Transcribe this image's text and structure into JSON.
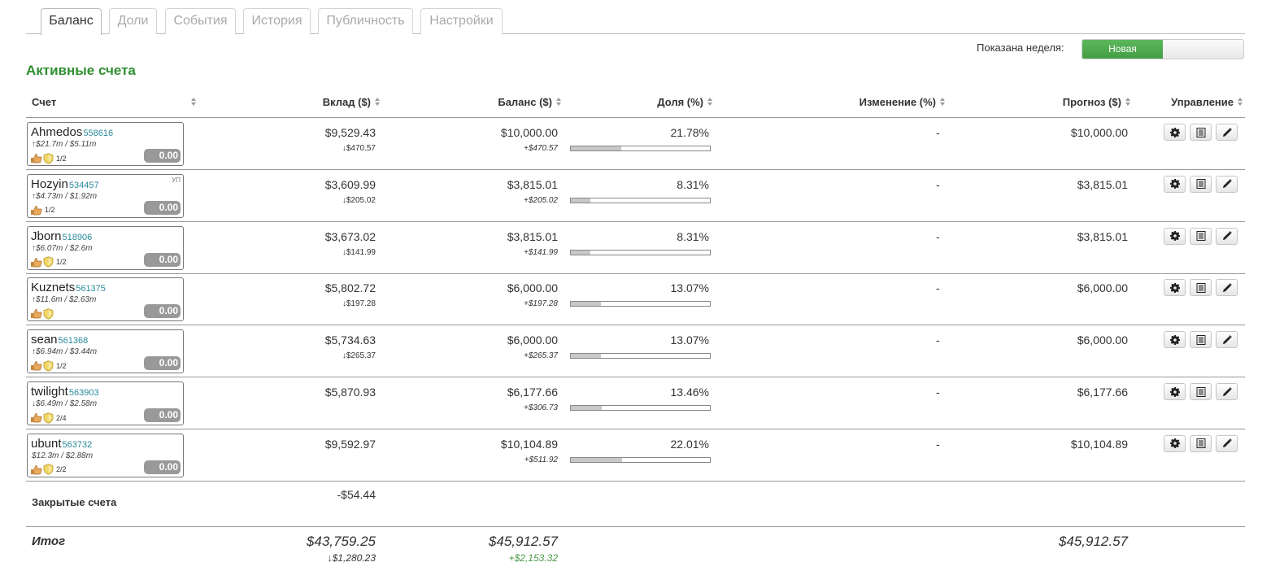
{
  "tabs": [
    {
      "label": "Баланс",
      "active": true
    },
    {
      "label": "Доли",
      "active": false
    },
    {
      "label": "События",
      "active": false
    },
    {
      "label": "История",
      "active": false
    },
    {
      "label": "Публичность",
      "active": false
    },
    {
      "label": "Настройки",
      "active": false
    }
  ],
  "week": {
    "label": "Показана неделя:",
    "selected": "Новая"
  },
  "section_title": "Активные счета",
  "columns": {
    "account": "Счет",
    "deposit": "Вклад ($)",
    "balance": "Баланс ($)",
    "share": "Доля (%)",
    "change": "Изменение (%)",
    "forecast": "Прогноз ($)",
    "manage": "Управление"
  },
  "rows": [
    {
      "name": "Ahmedos",
      "id": "558616",
      "stats": "↑$21.7m / $5.11m",
      "frac": "1/2",
      "shield": true,
      "tag": "",
      "badge": "0.00",
      "deposit": "$9,529.43",
      "deposit_sub": "↓$470.57",
      "balance": "$10,000.00",
      "balance_sub": "+$470.57",
      "share": "21.78%",
      "share_value": 21.78,
      "change": "-",
      "forecast": "$10,000.00"
    },
    {
      "name": "Hozyin",
      "id": "534457",
      "stats": "↑$4.73m / $1.92m",
      "frac": "1/2",
      "shield": false,
      "tag": "УП",
      "badge": "0.00",
      "deposit": "$3,609.99",
      "deposit_sub": "↓$205.02",
      "balance": "$3,815.01",
      "balance_sub": "+$205.02",
      "share": "8.31%",
      "share_value": 8.31,
      "change": "-",
      "forecast": "$3,815.01"
    },
    {
      "name": "Jborn",
      "id": "518906",
      "stats": "↑$6.07m / $2.6m",
      "frac": "1/2",
      "shield": true,
      "tag": "",
      "badge": "0.00",
      "deposit": "$3,673.02",
      "deposit_sub": "↓$141.99",
      "balance": "$3,815.01",
      "balance_sub": "+$141.99",
      "share": "8.31%",
      "share_value": 8.31,
      "change": "-",
      "forecast": "$3,815.01"
    },
    {
      "name": "Kuznets",
      "id": "561375",
      "stats": "↑$11.6m / $2.63m",
      "frac": "",
      "shield": true,
      "tag": "",
      "badge": "0.00",
      "deposit": "$5,802.72",
      "deposit_sub": "↓$197.28",
      "balance": "$6,000.00",
      "balance_sub": "+$197.28",
      "share": "13.07%",
      "share_value": 13.07,
      "change": "-",
      "forecast": "$6,000.00"
    },
    {
      "name": "sean",
      "id": "561368",
      "stats": "↑$6.94m / $3.44m",
      "frac": "1/2",
      "shield": true,
      "tag": "",
      "badge": "0.00",
      "deposit": "$5,734.63",
      "deposit_sub": "↓$265.37",
      "balance": "$6,000.00",
      "balance_sub": "+$265.37",
      "share": "13.07%",
      "share_value": 13.07,
      "change": "-",
      "forecast": "$6,000.00"
    },
    {
      "name": "twilight",
      "id": "563903",
      "stats": "↓$6.49m / $2.58m",
      "frac": "2/4",
      "shield": true,
      "tag": "",
      "badge": "0.00",
      "deposit": "$5,870.93",
      "deposit_sub": "",
      "balance": "$6,177.66",
      "balance_sub": "+$306.73",
      "share": "13.46%",
      "share_value": 13.46,
      "change": "-",
      "forecast": "$6,177.66"
    },
    {
      "name": "ubunt",
      "id": "563732",
      "stats": "$12.3m / $2.88m",
      "frac": "2/2",
      "shield": true,
      "tag": "",
      "badge": "0.00",
      "deposit": "$9,592.97",
      "deposit_sub": "",
      "balance": "$10,104.89",
      "balance_sub": "+$511.92",
      "share": "22.01%",
      "share_value": 22.01,
      "change": "-",
      "forecast": "$10,104.89"
    }
  ],
  "closed": {
    "label": "Закрытые счета",
    "deposit": "-$54.44"
  },
  "total": {
    "label": "Итог",
    "deposit": "$43,759.25",
    "deposit_sub": "↓$1,280.23",
    "balance": "$45,912.57",
    "balance_sub": "+$2,153.32",
    "forecast": "$45,912.57"
  },
  "colors": {
    "accent_green": "#2f8f2f",
    "toggle_green": "#5cb85c",
    "account_id": "#2a8a9a",
    "positive": "#4a9a4a"
  },
  "icons": {
    "row_actions": [
      "gear-icon",
      "list-icon",
      "pencil-icon"
    ],
    "account": [
      "thumbs-up-icon",
      "shield-icon"
    ]
  }
}
